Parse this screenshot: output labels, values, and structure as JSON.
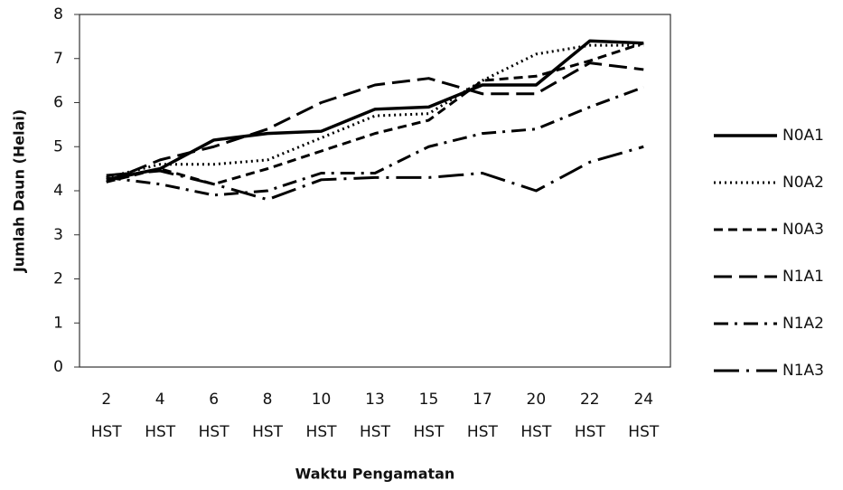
{
  "chart_data": {
    "type": "line",
    "x_label": "Waktu Pengamatan",
    "y_label": "Jumlah Daun  (Helai)",
    "categories": [
      "2 HST",
      "4 HST",
      "6 HST",
      "8 HST",
      "10 HST",
      "13 HST",
      "15 HST",
      "17 HST",
      "20 HST",
      "22 HST",
      "24 HST"
    ],
    "ylim": [
      0,
      8
    ],
    "yticks": [
      0,
      1,
      2,
      3,
      4,
      5,
      6,
      7,
      8
    ],
    "grid": false,
    "legend": "right",
    "series": [
      {
        "name": "N0A1",
        "color": "#000000",
        "dash": "none",
        "values": [
          4.25,
          4.5,
          5.15,
          5.3,
          5.35,
          5.85,
          5.9,
          6.4,
          6.4,
          7.4,
          7.35
        ]
      },
      {
        "name": "N0A2",
        "color": "#000000",
        "dash": "2,4",
        "values": [
          4.3,
          4.6,
          4.6,
          4.7,
          5.2,
          5.7,
          5.75,
          6.5,
          7.1,
          7.3,
          7.3
        ]
      },
      {
        "name": "N0A3",
        "color": "#000000",
        "dash": "10,6",
        "values": [
          4.2,
          4.5,
          4.15,
          4.5,
          4.9,
          5.3,
          5.6,
          6.5,
          6.6,
          6.95,
          7.35
        ]
      },
      {
        "name": "N1A1",
        "color": "#000000",
        "dash": "20,8",
        "values": [
          4.2,
          4.7,
          5.0,
          5.4,
          6.0,
          6.4,
          6.55,
          6.2,
          6.2,
          6.9,
          6.75
        ]
      },
      {
        "name": "N1A2",
        "color": "#000000",
        "dash": "16,7,3,7",
        "values": [
          4.3,
          4.15,
          3.9,
          4.0,
          4.4,
          4.4,
          5.0,
          5.3,
          5.4,
          5.9,
          6.35
        ]
      },
      {
        "name": "N1A3",
        "color": "#000000",
        "dash": "28,8,3,8",
        "values": [
          4.35,
          4.45,
          4.15,
          3.8,
          4.25,
          4.3,
          4.3,
          4.4,
          4.0,
          4.65,
          5.0
        ]
      }
    ]
  }
}
